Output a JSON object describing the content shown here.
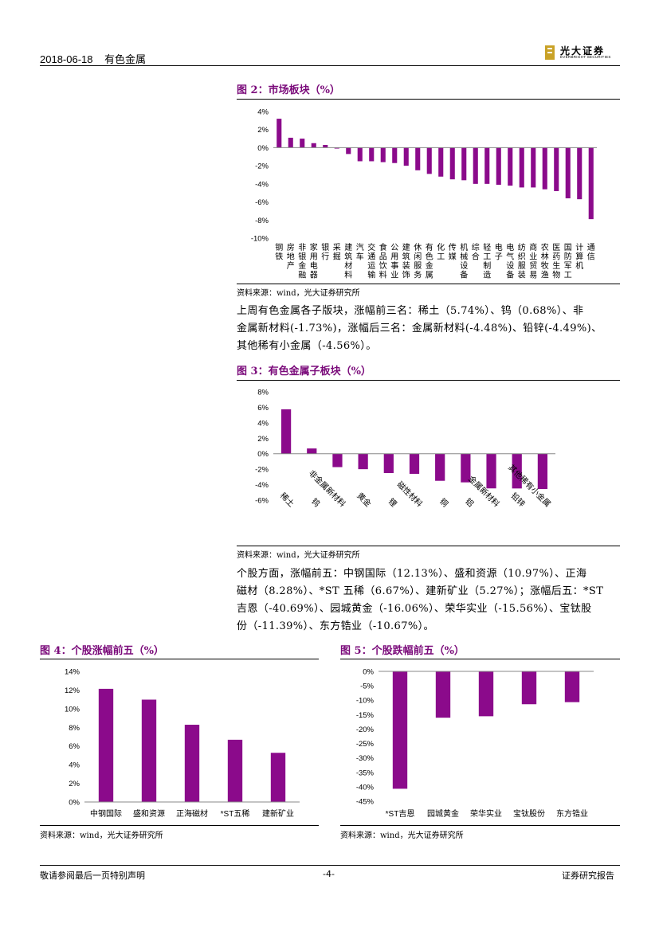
{
  "header": {
    "date": "2018-06-18",
    "sector": "有色金属",
    "logo_cn": "光大证券",
    "logo_en": "EVERBRIGHT SECURITIES",
    "logo_color": "#c9a227"
  },
  "fig2": {
    "title": "图 2：市场板块（%）",
    "source": "资料来源：wind，光大证券研究所",
    "chart_data": {
      "type": "bar",
      "color": "#8b0a8b",
      "ylim": [
        -10,
        4
      ],
      "yticks": [
        "4%",
        "2%",
        "0%",
        "-2%",
        "-4%",
        "-6%",
        "-8%",
        "-10%"
      ],
      "categories": [
        "钢铁",
        "房地产",
        "非银金融",
        "家用电器",
        "银行",
        "采掘",
        "建筑材料",
        "汽车",
        "交通运输",
        "食品饮料",
        "公用事业",
        "建筑装饰",
        "休闲服务",
        "有色金属",
        "化工",
        "传媒",
        "机械设备",
        "综合",
        "轻工制造",
        "电子",
        "电气设备",
        "纺织服装",
        "商业贸易",
        "农林牧渔",
        "医药生物",
        "国防军工",
        "计算机",
        "通信"
      ],
      "values": [
        3.2,
        1.1,
        1.0,
        0.5,
        0.3,
        -0.1,
        -0.7,
        -1.5,
        -1.5,
        -1.6,
        -1.7,
        -2.0,
        -2.5,
        -2.9,
        -3.2,
        -3.5,
        -3.6,
        -4.0,
        -4.0,
        -4.1,
        -4.2,
        -4.4,
        -4.4,
        -4.6,
        -4.8,
        -5.6,
        -5.7,
        -7.9
      ]
    }
  },
  "para1": [
    "上周有色金属各子版块，涨幅前三名：稀土（5.74%）、钨（0.68%）、非",
    "金属新材料(-1.73%)，涨幅后三名：金属新材料(-4.48%)、铅锌(-4.49%)、",
    "其他稀有小金属（-4.56%）。"
  ],
  "fig3": {
    "title": "图 3：有色金属子板块（%）",
    "source": "资料来源：wind，光大证券研究所",
    "chart_data": {
      "type": "bar",
      "color": "#8b0a8b",
      "ylim": [
        -6,
        8
      ],
      "yticks": [
        "8%",
        "6%",
        "4%",
        "2%",
        "0%",
        "-2%",
        "-4%",
        "-6%"
      ],
      "categories": [
        "稀土",
        "钨",
        "非金属新材料",
        "黄金",
        "锂",
        "磁性材料",
        "铜",
        "铝",
        "金属新材料",
        "铅锌",
        "其他稀有小金属"
      ],
      "values": [
        5.74,
        0.68,
        -1.73,
        -2.0,
        -2.5,
        -2.6,
        -3.5,
        -3.7,
        -4.48,
        -4.49,
        -4.56
      ]
    }
  },
  "para2": [
    "个股方面，涨幅前五：中钢国际（12.13%）、盛和资源（10.97%）、正海",
    "磁材（8.28%）、*ST 五稀（6.67%）、建新矿业（5.27%）；涨幅后五：*ST",
    "吉恩（-40.69%）、园城黄金（-16.06%）、荣华实业（-15.56%）、宝钛股",
    "份（-11.39%）、东方锆业（-10.67%）。"
  ],
  "fig4": {
    "title": "图 4：个股涨幅前五（%）",
    "source": "资料来源：wind，光大证券研究所",
    "chart_data": {
      "type": "bar",
      "color": "#8b0a8b",
      "ylim": [
        0,
        14
      ],
      "yticks": [
        "14%",
        "12%",
        "10%",
        "8%",
        "6%",
        "4%",
        "2%",
        "0%"
      ],
      "categories": [
        "中钢国际",
        "盛和资源",
        "正海磁材",
        "*ST五稀",
        "建新矿业"
      ],
      "values": [
        12.13,
        10.97,
        8.28,
        6.67,
        5.27
      ]
    }
  },
  "fig5": {
    "title": "图 5：个股跌幅前五（%）",
    "source": "资料来源：wind，光大证券研究所",
    "chart_data": {
      "type": "bar",
      "color": "#8b0a8b",
      "ylim": [
        -45,
        0
      ],
      "yticks": [
        "0%",
        "-5%",
        "-10%",
        "-15%",
        "-20%",
        "-25%",
        "-30%",
        "-35%",
        "-40%",
        "-45%"
      ],
      "categories": [
        "*ST吉恩",
        "园城黄金",
        "荣华实业",
        "宝钛股份",
        "东方锆业"
      ],
      "values": [
        -40.69,
        -16.06,
        -15.56,
        -11.39,
        -10.67
      ]
    }
  },
  "footer": {
    "left": "敬请参阅最后一页特别声明",
    "page": "-4-",
    "right": "证券研究报告"
  }
}
